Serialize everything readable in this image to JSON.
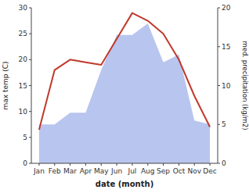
{
  "chart_data": {
    "type": "line",
    "x_label": "date (month)",
    "y_label": "max temp (C)",
    "y2_label": "med. precipitation (kg/m2)",
    "categories": [
      "Jan",
      "Feb",
      "Mar",
      "Apr",
      "May",
      "Jun",
      "Jul",
      "Aug",
      "Sep",
      "Oct",
      "Nov",
      "Dec"
    ],
    "series": [
      {
        "type": "area",
        "axis": "y2",
        "color": "#b8c5ee",
        "values": [
          5.0,
          5.0,
          6.5,
          6.5,
          12.0,
          16.5,
          16.5,
          18.0,
          13.0,
          14.0,
          5.5,
          5.0
        ]
      },
      {
        "type": "line",
        "color": "#c0392b",
        "values": [
          6.5,
          18.0,
          20.0,
          19.5,
          19.0,
          24.0,
          29.0,
          27.5,
          25.0,
          20.0,
          13.0,
          7.0
        ]
      }
    ],
    "ylim": [
      0,
      30
    ],
    "yticks": [
      0,
      5,
      10,
      15,
      20,
      25,
      30
    ],
    "y2lim": [
      0,
      20
    ],
    "y2ticks": [
      0,
      5,
      10,
      15,
      20
    ],
    "grid": false
  }
}
